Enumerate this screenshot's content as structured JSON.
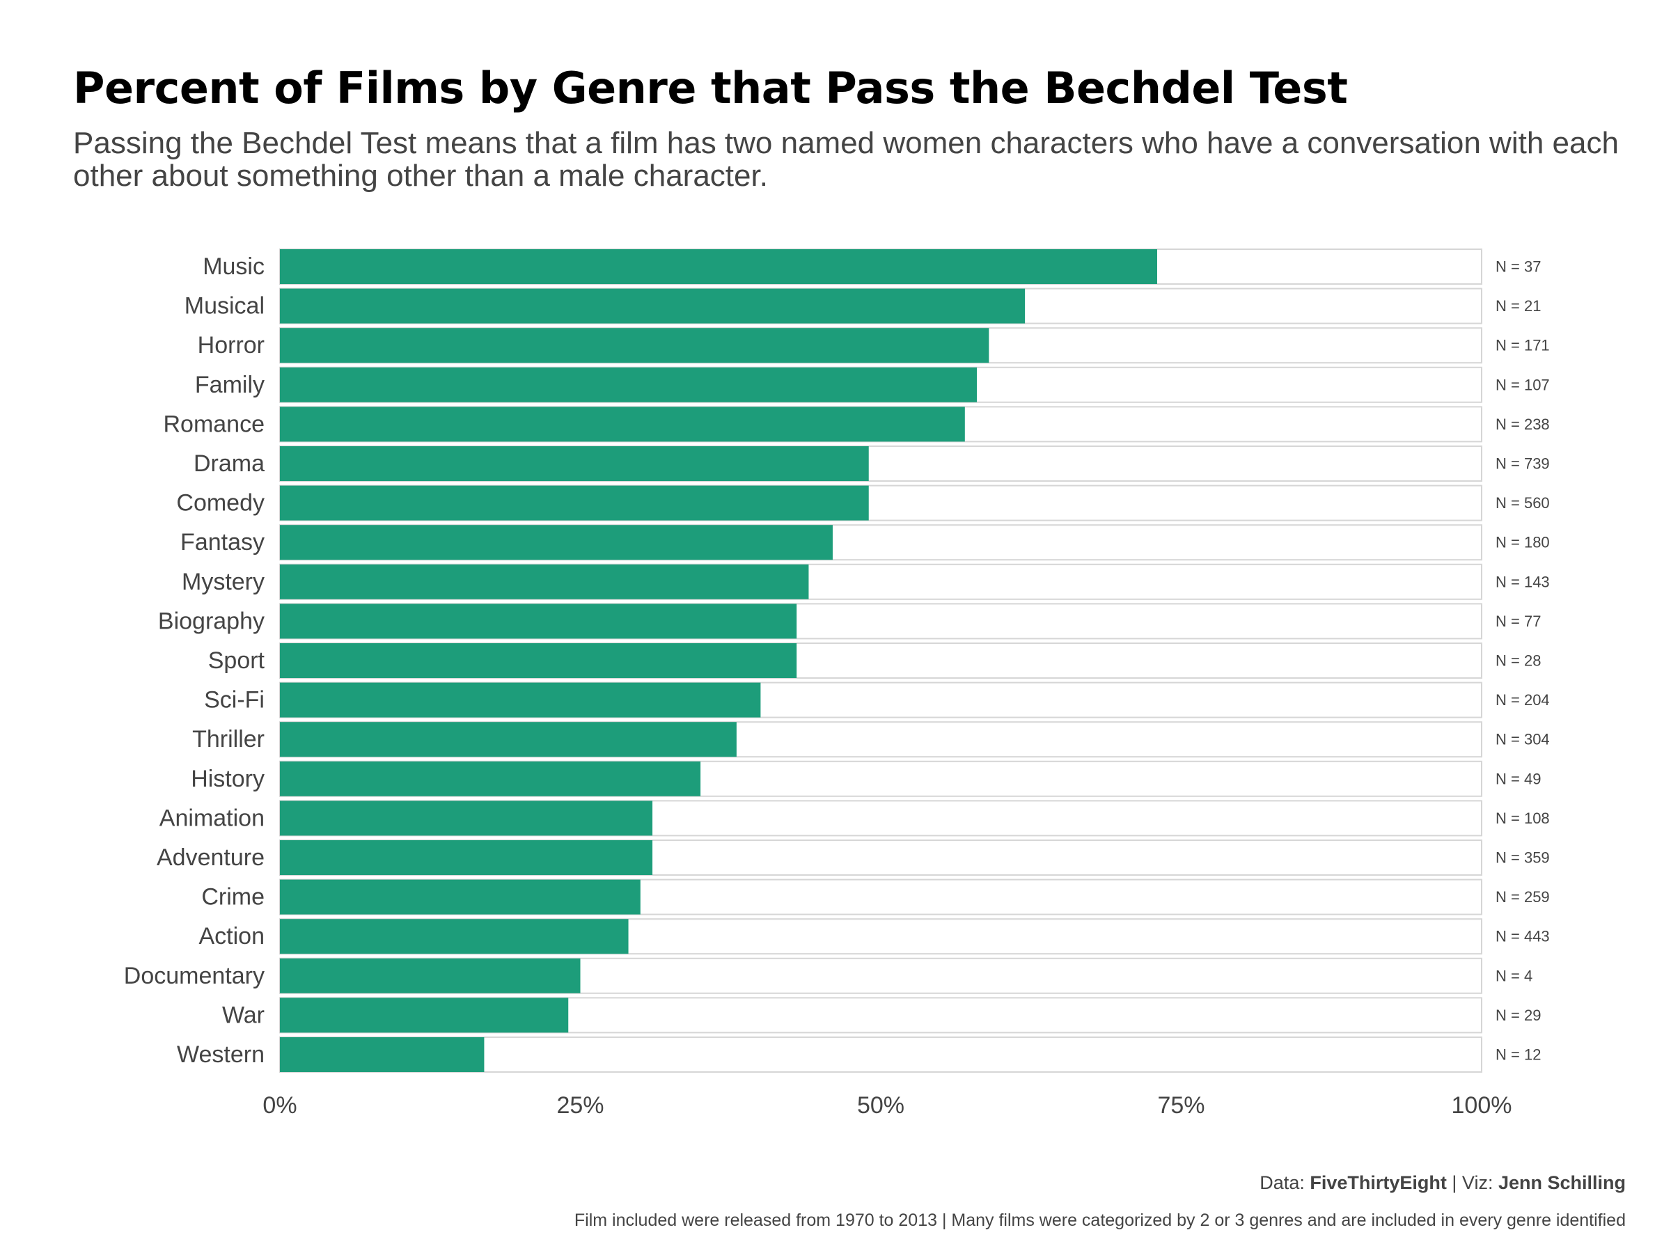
{
  "title": "Percent of Films by Genre that Pass the Bechdel Test",
  "subtitle": "Passing the Bechdel Test means that a film has two named women characters who have a conversation with each other about something other than a male character.",
  "caption": {
    "data_label": "Data:",
    "data_source": "FiveThirtyEight",
    "separator": "|",
    "viz_label": "Viz:",
    "viz_author": "Jenn Schilling",
    "note": "Film included were released from 1970 to 2013 | Many films were categorized by 2 or 3 genres and are included in every genre identified"
  },
  "colors": {
    "bar": "#1d9d7a",
    "track_border": "#d6d6d6",
    "label": "#444444"
  },
  "chart_data": {
    "type": "bar",
    "orientation": "horizontal",
    "xlim": [
      0,
      1
    ],
    "x_ticks": [
      0,
      0.25,
      0.5,
      0.75,
      1
    ],
    "x_tick_labels": [
      "0%",
      "25%",
      "50%",
      "75%",
      "100%"
    ],
    "categories": [
      "Music",
      "Musical",
      "Horror",
      "Family",
      "Romance",
      "Drama",
      "Comedy",
      "Fantasy",
      "Mystery",
      "Biography",
      "Sport",
      "Sci-Fi",
      "Thriller",
      "History",
      "Animation",
      "Adventure",
      "Crime",
      "Action",
      "Documentary",
      "War",
      "Western"
    ],
    "values": [
      0.73,
      0.62,
      0.59,
      0.58,
      0.57,
      0.49,
      0.49,
      0.46,
      0.44,
      0.43,
      0.43,
      0.4,
      0.38,
      0.35,
      0.31,
      0.31,
      0.3,
      0.29,
      0.25,
      0.24,
      0.17
    ],
    "n_labels": [
      "N = 37",
      "N = 21",
      "N = 171",
      "N = 107",
      "N = 238",
      "N = 739",
      "N = 560",
      "N = 180",
      "N = 143",
      "N = 77",
      "N = 28",
      "N = 204",
      "N = 304",
      "N = 49",
      "N = 108",
      "N = 359",
      "N = 259",
      "N = 443",
      "N = 4",
      "N = 29",
      "N = 12"
    ],
    "grid": false,
    "legend": false
  }
}
